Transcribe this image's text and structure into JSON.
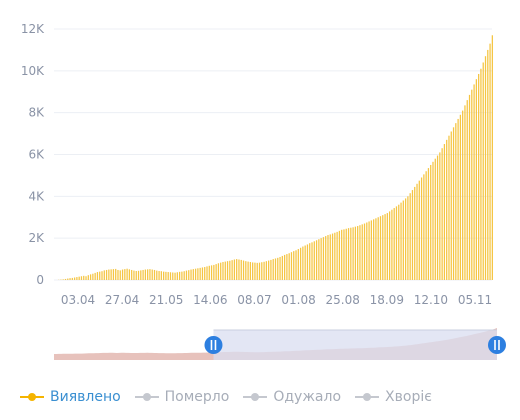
{
  "chart_data": {
    "type": "bar",
    "ylim": [
      0,
      12000
    ],
    "y_ticks": [
      "0",
      "2K",
      "4K",
      "6K",
      "8K",
      "10K",
      "12K"
    ],
    "y_tick_values": [
      0,
      2000,
      4000,
      6000,
      8000,
      10000,
      12000
    ],
    "x_ticks": [
      "03.04",
      "27.04",
      "21.05",
      "14.06",
      "08.07",
      "01.08",
      "25.08",
      "18.09",
      "12.10",
      "05.11"
    ],
    "grid": true,
    "bar_color": "#f5c542",
    "series": [
      {
        "values": [
          10,
          20,
          30,
          50,
          70,
          90,
          100,
          120,
          140,
          160,
          180,
          200,
          180,
          230,
          270,
          300,
          340,
          380,
          400,
          420,
          460,
          480,
          500,
          510,
          520,
          530,
          480,
          460,
          500,
          520,
          540,
          510,
          480,
          450,
          430,
          440,
          460,
          480,
          500,
          510,
          520,
          500,
          480,
          450,
          430,
          420,
          400,
          390,
          380,
          370,
          360,
          350,
          370,
          390,
          400,
          420,
          450,
          470,
          500,
          520,
          540,
          560,
          580,
          600,
          620,
          650,
          680,
          700,
          720,
          760,
          800,
          830,
          860,
          880,
          900,
          920,
          950,
          980,
          1000,
          980,
          960,
          930,
          900,
          880,
          860,
          840,
          830,
          820,
          830,
          850,
          870,
          900,
          930,
          960,
          1000,
          1030,
          1060,
          1100,
          1150,
          1200,
          1240,
          1280,
          1330,
          1380,
          1420,
          1480,
          1540,
          1600,
          1650,
          1700,
          1760,
          1800,
          1850,
          1900,
          1950,
          2000,
          2050,
          2100,
          2150,
          2180,
          2220,
          2260,
          2300,
          2350,
          2400,
          2420,
          2450,
          2480,
          2500,
          2520,
          2550,
          2580,
          2620,
          2660,
          2700,
          2750,
          2800,
          2850,
          2900,
          2950,
          3000,
          3050,
          3100,
          3150,
          3200,
          3280,
          3360,
          3440,
          3520,
          3600,
          3700,
          3800,
          3900,
          4000,
          4150,
          4300,
          4450,
          4600,
          4750,
          4900,
          5050,
          5200,
          5350,
          5500,
          5650,
          5800,
          5950,
          6100,
          6300,
          6500,
          6700,
          6900,
          7100,
          7300,
          7500,
          7700,
          7900,
          8100,
          8350,
          8600,
          8850,
          9100,
          9350,
          9600,
          9850,
          10100,
          10400,
          10700,
          11000,
          11300,
          11700
        ]
      }
    ]
  },
  "navigator": {
    "range": [
      0.36,
      1.0
    ]
  },
  "legend": {
    "items": [
      {
        "label": "Виявлено",
        "color": "#f5b400",
        "active": true
      },
      {
        "label": "Померло",
        "color": "#c5c8cf",
        "active": false
      },
      {
        "label": "Одужало",
        "color": "#c5c8cf",
        "active": false
      },
      {
        "label": "Хворіє",
        "color": "#c5c8cf",
        "active": false
      }
    ]
  },
  "colors": {
    "handle": "#2d7fe0",
    "navigator_area": "#e3b7b0",
    "navigator_mask": "#d9def0"
  }
}
